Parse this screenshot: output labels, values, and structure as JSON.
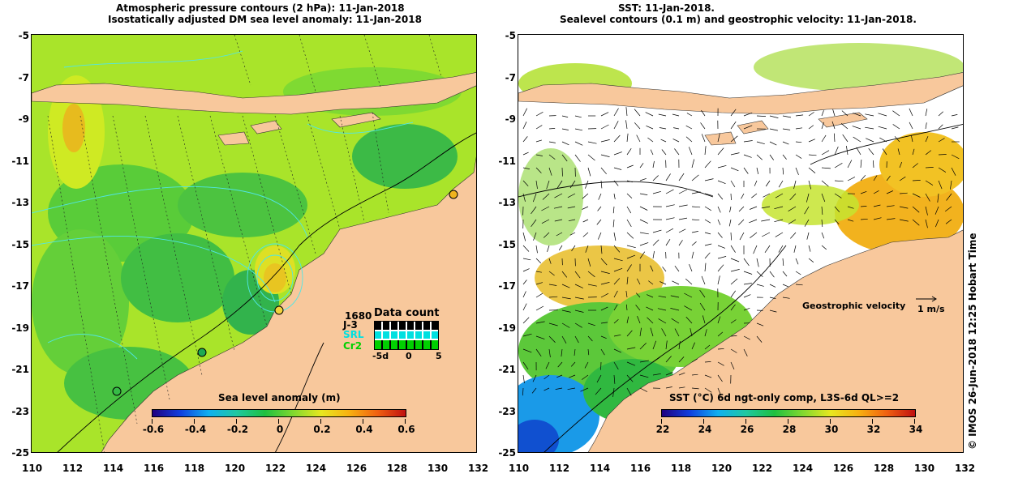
{
  "left_panel": {
    "title_line1": "Atmospheric pressure contours (2 hPa): 11-Jan-2018",
    "title_line2": "Isostatically adjusted DM sea level anomaly: 11-Jan-2018",
    "colorbar": {
      "label": "Sea level anomaly (m)",
      "ticks": [
        "-0.6",
        "-0.4",
        "-0.2",
        "0",
        "0.2",
        "0.4",
        "0.6"
      ],
      "range": [
        -0.6,
        0.6
      ]
    },
    "legend": {
      "title": "Data count",
      "count": "1680",
      "missions": [
        {
          "name": "J-3",
          "color": "#000000"
        },
        {
          "name": "SRL",
          "color": "#00e0e0"
        },
        {
          "name": "Cr2",
          "color": "#00d000"
        }
      ],
      "axis_ticks": [
        "-5d",
        "0",
        "5"
      ]
    }
  },
  "right_panel": {
    "title_line1": "SST: 11-Jan-2018.",
    "title_line2": "Sealevel contours (0.1 m) and geostrophic velocity: 11-Jan-2018.",
    "colorbar": {
      "label": "SST (°C) 6d ngt-only comp, L3S-6d QL>=2",
      "ticks": [
        "22",
        "24",
        "26",
        "28",
        "30",
        "32",
        "34"
      ],
      "range": [
        22,
        34
      ]
    },
    "velocity_label": "Geostrophic velocity",
    "velocity_unit": "1 m/s"
  },
  "axes": {
    "lat_ticks": [
      "-5",
      "-7",
      "-9",
      "-11",
      "-13",
      "-15",
      "-17",
      "-19",
      "-21",
      "-23",
      "-25"
    ],
    "lon_ticks": [
      "110",
      "112",
      "114",
      "116",
      "118",
      "120",
      "122",
      "124",
      "126",
      "128",
      "130",
      "132"
    ],
    "lon_range": [
      110,
      132
    ],
    "lat_range": [
      -25,
      -5
    ]
  },
  "side_credit": "© IMOS 26-Jun-2018 12:25 Hobart Time",
  "colors": {
    "land": "#f8c89c",
    "ocean_left": "#aee62a",
    "sst_white": "#ffffff"
  }
}
